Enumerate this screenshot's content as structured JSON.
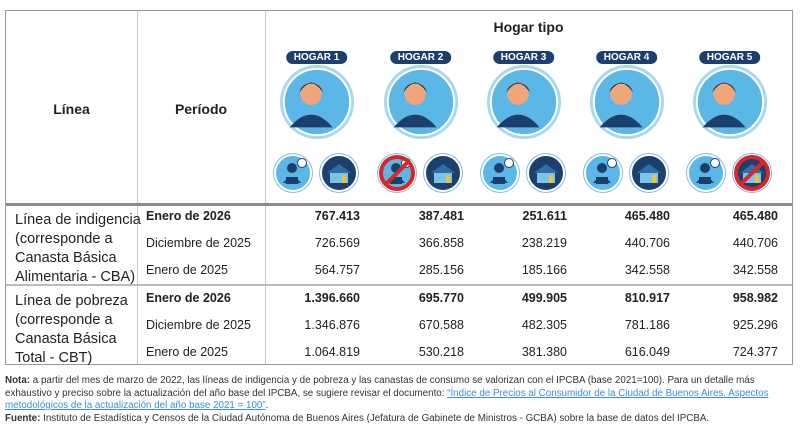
{
  "header": {
    "linea": "Línea",
    "periodo": "Período",
    "hogar_tipo": "Hogar tipo"
  },
  "hogares": [
    {
      "label": "HOGAR 1",
      "portrait": "family-two-adults-two-children",
      "worker_crossed": false,
      "house_crossed": false
    },
    {
      "label": "HOGAR 2",
      "portrait": "elderly-couple",
      "worker_crossed": true,
      "house_crossed": false
    },
    {
      "label": "HOGAR 3",
      "portrait": "single-adult",
      "worker_crossed": false,
      "house_crossed": false
    },
    {
      "label": "HOGAR 4",
      "portrait": "adult-couple",
      "worker_crossed": false,
      "house_crossed": false
    },
    {
      "label": "HOGAR 5",
      "portrait": "adult-couple",
      "worker_crossed": false,
      "house_crossed": true
    }
  ],
  "groups": [
    {
      "linea": "Línea de indigencia (corresponde a Canasta Básica Alimentaria - CBA)",
      "rows": [
        {
          "periodo": "Enero de 2026",
          "values": [
            "767.413",
            "387.481",
            "251.611",
            "465.480",
            "465.480"
          ]
        },
        {
          "periodo": "Diciembre de 2025",
          "values": [
            "726.569",
            "366.858",
            "238.219",
            "440.706",
            "440.706"
          ]
        },
        {
          "periodo": "Enero de 2025",
          "values": [
            "564.757",
            "285.156",
            "185.166",
            "342.558",
            "342.558"
          ]
        }
      ]
    },
    {
      "linea": "Línea de pobreza (corresponde a Canasta Básica Total - CBT)",
      "rows": [
        {
          "periodo": "Enero de 2026",
          "values": [
            "1.396.660",
            "695.770",
            "499.905",
            "810.917",
            "958.982"
          ]
        },
        {
          "periodo": "Diciembre de 2025",
          "values": [
            "1.346.876",
            "670.588",
            "482.305",
            "781.186",
            "925.296"
          ]
        },
        {
          "periodo": "Enero de 2025",
          "values": [
            "1.064.819",
            "530.218",
            "381.380",
            "616.049",
            "724.377"
          ]
        }
      ]
    }
  ],
  "note": {
    "label": "Nota:",
    "text": " a partir del mes de marzo de 2022, las líneas de indigencia y de pobreza y las canastas de consumo se valorizan con el IPCBA (base 2021=100). Para un detalle más exhaustivo y preciso sobre la actualización del año base del IPCBA, se sugiere revisar el documento: ",
    "link": "“Índice de Precios al Consumidor de la Ciudad de Buenos Aires. Aspectos metodológicos de la actualización del año base 2021 = 100”",
    "end": "."
  },
  "source": {
    "label": "Fuente:",
    "text": " Instituto de Estadística y Censos de la Ciudad Autónoma de Buenos Aires (Jefatura de Gabinete de Ministros - GCBA) sobre la base de datos del IPCBA."
  },
  "colors": {
    "badge": "#1d3f6e",
    "circle": "#5bb8e6",
    "ring": "#a8d8f0",
    "link": "#3b8fd6",
    "cross": "#d9262b"
  }
}
